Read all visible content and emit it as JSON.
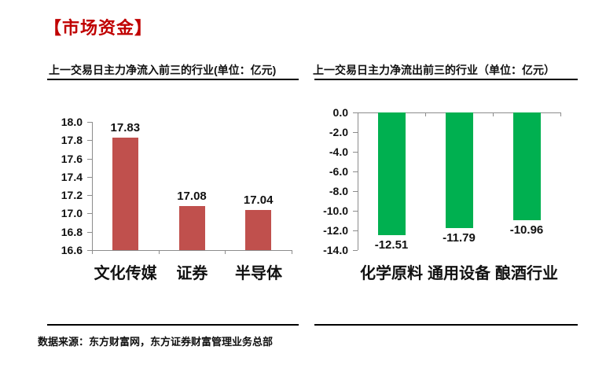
{
  "header": {
    "title": "【市场资金】",
    "color": "#C00000"
  },
  "chart_data": [
    {
      "type": "bar",
      "title": "上一交易日主力净流入前三的行业(单位：亿元)",
      "categories": [
        "文化传媒",
        "证券",
        "半导体"
      ],
      "values": [
        17.83,
        17.08,
        17.04
      ],
      "value_labels": [
        "17.83",
        "17.08",
        "17.04"
      ],
      "bar_color": "#C0504D",
      "ylim": [
        16.6,
        18.0
      ],
      "ytick_step": 0.2,
      "baseline": 16.6,
      "value_label_position": "above",
      "grid": false,
      "legend": false
    },
    {
      "type": "bar",
      "title": "上一交易日主力净流出前三的行业（单位：亿元）",
      "categories": [
        "化学原料",
        "通用设备",
        "酿酒行业"
      ],
      "values": [
        -12.51,
        -11.79,
        -10.96
      ],
      "value_labels": [
        "-12.51",
        "-11.79",
        "-10.96"
      ],
      "bar_color": "#00B050",
      "ylim": [
        -14.0,
        0.0
      ],
      "ytick_step": 2.0,
      "baseline": 0,
      "value_label_position": "below",
      "grid": false,
      "legend": false
    }
  ],
  "footer": {
    "text": "数据来源：东方财富网，东方证券财富管理业务总部"
  },
  "colors": {
    "accent_red": "#C00000",
    "bar_red": "#C0504D",
    "bar_green": "#00B050",
    "axis_gray": "#8C8C8C",
    "rule_black": "#000000"
  }
}
